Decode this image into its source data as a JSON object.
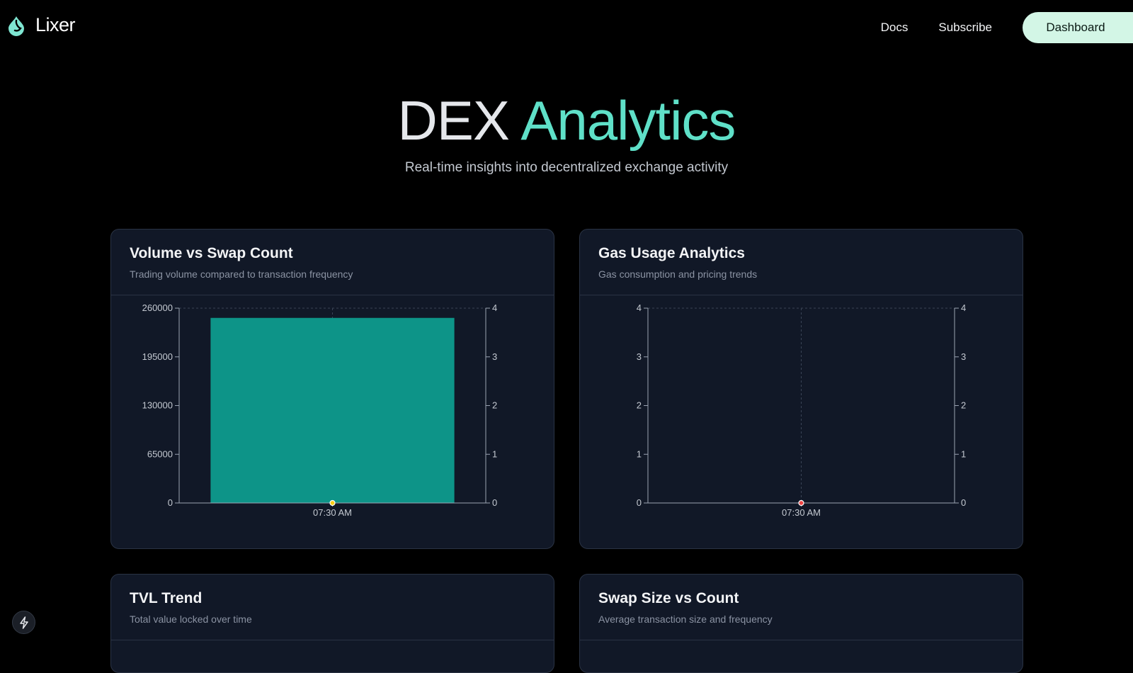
{
  "brand": {
    "name": "Lixer",
    "accent": "#5fe0c8"
  },
  "nav": {
    "docs": "Docs",
    "subscribe": "Subscribe",
    "dashboard": "Dashboard"
  },
  "hero": {
    "title_plain": "DEX",
    "title_accent": "Analytics",
    "subtitle": "Real-time insights into decentralized exchange activity"
  },
  "cards": [
    {
      "title": "Volume vs Swap Count",
      "description": "Trading volume compared to transaction frequency"
    },
    {
      "title": "Gas Usage Analytics",
      "description": "Gas consumption and pricing trends"
    },
    {
      "title": "TVL Trend",
      "description": "Total value locked over time"
    },
    {
      "title": "Swap Size vs Count",
      "description": "Average transaction size and frequency"
    }
  ],
  "chart_data": [
    {
      "type": "bar",
      "categories": [
        "07:30 AM"
      ],
      "series": [
        {
          "type": "bar",
          "axis": "left",
          "values": [
            247000
          ],
          "color": "#0d9488"
        },
        {
          "type": "line",
          "axis": "right",
          "values": [
            0
          ],
          "color": "#facc15"
        }
      ],
      "y_left": {
        "range": [
          0,
          260000
        ],
        "ticks": [
          "0",
          "65000",
          "130000",
          "195000",
          "260000"
        ]
      },
      "y_right": {
        "range": [
          0,
          4
        ],
        "ticks": [
          "0",
          "1",
          "2",
          "3",
          "4"
        ]
      },
      "grid": "dashed-top"
    },
    {
      "type": "line",
      "categories": [
        "07:30 AM"
      ],
      "series": [
        {
          "type": "line",
          "axis": "left",
          "values": [
            0
          ],
          "color": "#ef4444"
        }
      ],
      "y_left": {
        "range": [
          0,
          4
        ],
        "ticks": [
          "0",
          "1",
          "2",
          "3",
          "4"
        ]
      },
      "y_right": {
        "range": [
          0,
          4
        ],
        "ticks": [
          "0",
          "1",
          "2",
          "3",
          "4"
        ]
      },
      "grid": "dashed-top-and-center"
    }
  ],
  "fab": {
    "icon": "lightning-icon"
  }
}
